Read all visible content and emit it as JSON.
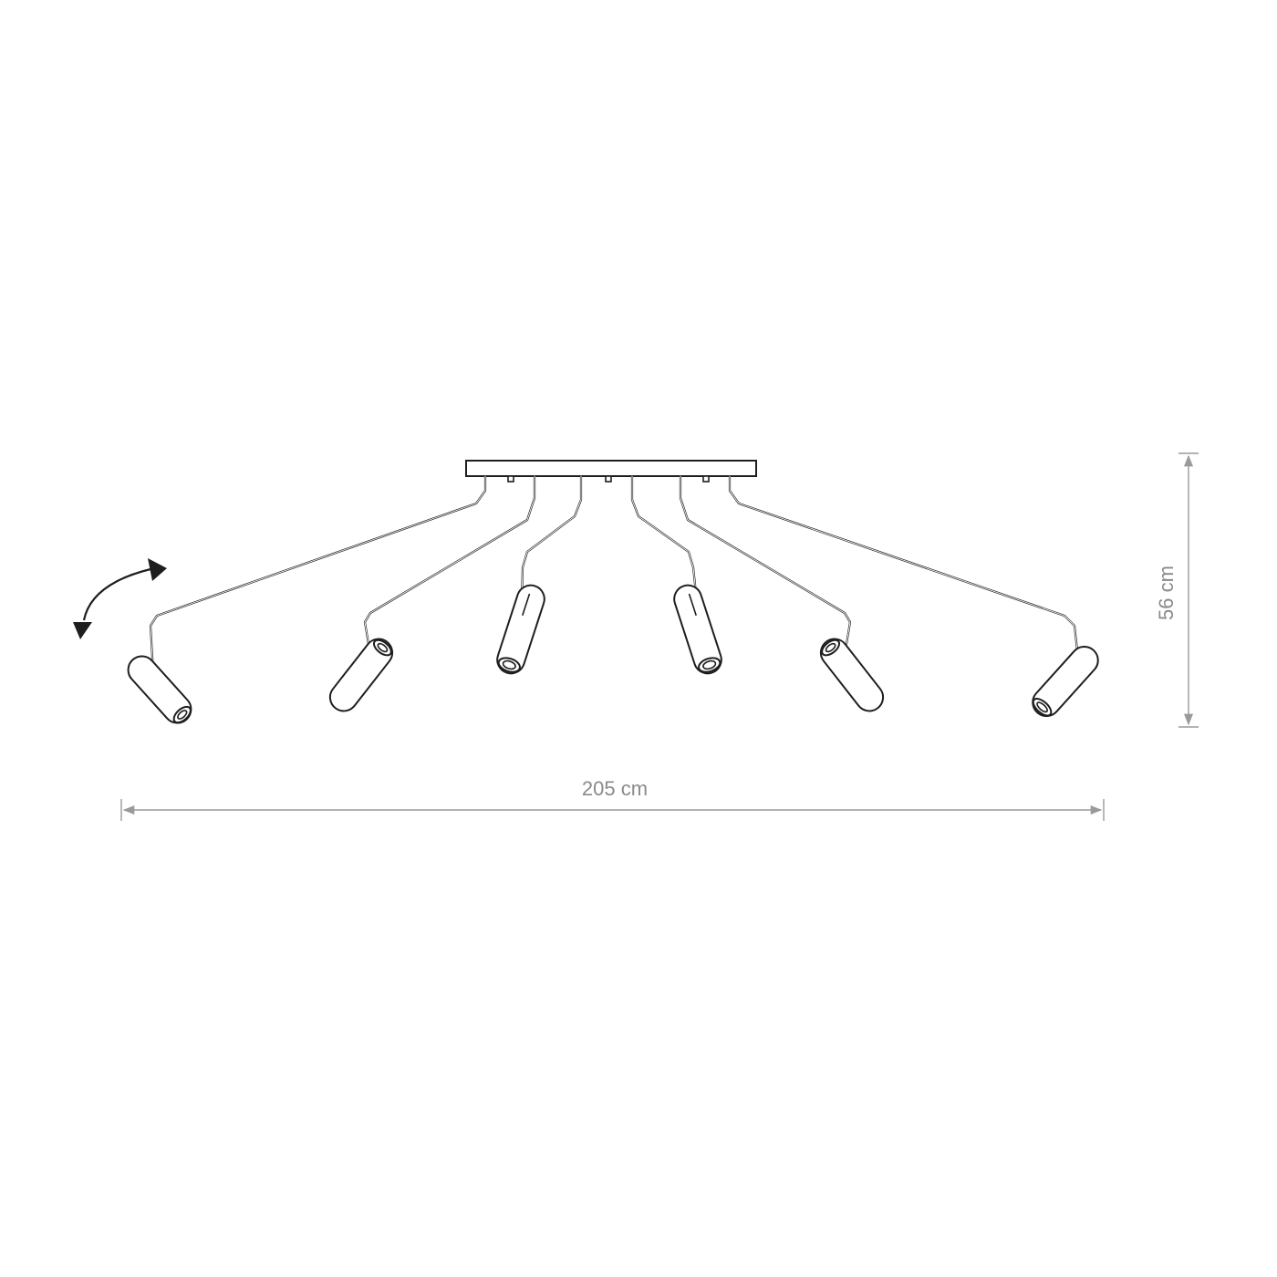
{
  "dimensions": {
    "width_label": "205 cm",
    "height_label": "56 cm"
  },
  "fixture": {
    "spot_count": 6
  },
  "colors": {
    "line": "#1e1e1e",
    "dimension": "#9a9a9a",
    "background": "#ffffff"
  },
  "icons": {
    "rotation": "rotate-arrow-icon"
  }
}
